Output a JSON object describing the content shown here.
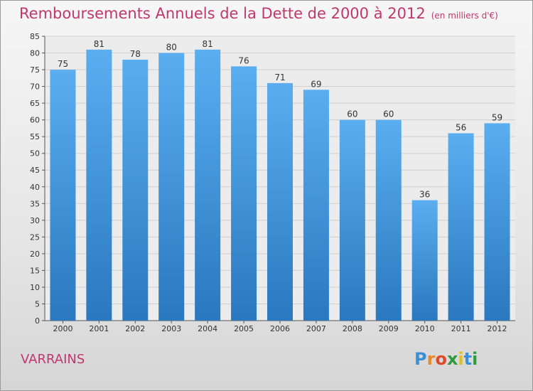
{
  "header": {
    "title": "Remboursements Annuels de la Dette de 2000 à 2012",
    "subtitle": "(en milliers d'€)"
  },
  "place": "VARRAINS",
  "logo": {
    "letters": [
      "P",
      "r",
      "o",
      "x",
      "i",
      "t",
      "i"
    ],
    "colors": [
      "#3b8fd6",
      "#e98a2a",
      "#e04a2a",
      "#2f9a3e",
      "#e0c020",
      "#3b8fd6",
      "#2f9a3e"
    ]
  },
  "chart_data": {
    "type": "bar",
    "categories": [
      "2000",
      "2001",
      "2002",
      "2003",
      "2004",
      "2005",
      "2006",
      "2007",
      "2008",
      "2009",
      "2010",
      "2011",
      "2012"
    ],
    "values": [
      75,
      81,
      78,
      80,
      81,
      76,
      71,
      69,
      60,
      60,
      36,
      56,
      59
    ],
    "ylim": [
      0,
      85
    ],
    "yticks": [
      0,
      5,
      10,
      15,
      20,
      25,
      30,
      35,
      40,
      45,
      50,
      55,
      60,
      65,
      70,
      75,
      80,
      85
    ],
    "grid": true,
    "colors": {
      "bar_top": "#5aaef0",
      "bar_bottom": "#2a78c0",
      "text": "#333333",
      "grid": "#cfcfcf",
      "accent": "#c0386a"
    }
  }
}
